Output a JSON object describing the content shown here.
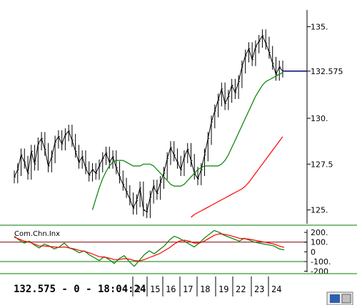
{
  "chart_data": [
    {
      "type": "candlestick",
      "title": "",
      "y_ticks": [
        "135.",
        "132.575",
        "130.",
        "127.5",
        "125."
      ],
      "y_tick_values": [
        135,
        132.575,
        130,
        127.5,
        125
      ],
      "ylim": [
        124.4,
        135.6
      ],
      "last_price_label": "132.575",
      "last_price": 132.575,
      "grid": false,
      "colors": {
        "price": "#000000",
        "ma_fast": "#008000",
        "ma_slow": "#ff0000",
        "last_price_line": "#000080",
        "axis": "#000000",
        "separator": "#008000"
      },
      "price_series": [
        126.8,
        127.2,
        128.0,
        127.6,
        127.0,
        128.2,
        127.5,
        128.6,
        128.9,
        128.3,
        127.4,
        127.9,
        128.7,
        129.0,
        128.6,
        129.1,
        129.3,
        128.8,
        128.2,
        127.6,
        127.9,
        127.3,
        126.9,
        127.2,
        127.0,
        127.4,
        127.8,
        128.1,
        127.6,
        127.9,
        127.3,
        126.8,
        126.4,
        126.0,
        125.6,
        125.1,
        125.5,
        126.2,
        125.0,
        124.9,
        125.7,
        126.3,
        125.9,
        126.5,
        127.0,
        127.8,
        128.4,
        128.0,
        127.6,
        127.2,
        127.9,
        128.3,
        127.7,
        127.0,
        126.7,
        127.2,
        128.0,
        128.9,
        129.8,
        130.4,
        131.0,
        131.6,
        130.8,
        131.2,
        131.8,
        131.4,
        132.0,
        132.8,
        133.4,
        133.8,
        133.2,
        133.9,
        134.2,
        134.5,
        134.1,
        133.6,
        133.0,
        132.4,
        132.8,
        132.575
      ],
      "ma_fast": [
        null,
        null,
        null,
        null,
        null,
        null,
        null,
        null,
        null,
        null,
        null,
        null,
        125.0,
        125.6,
        126.2,
        126.7,
        127.1,
        127.4,
        127.6,
        127.7,
        127.7,
        127.7,
        127.6,
        127.5,
        127.4,
        127.4,
        127.4,
        127.5,
        127.5,
        127.5,
        127.4,
        127.2,
        127.0,
        126.8,
        126.6,
        126.4,
        126.3,
        126.3,
        126.3,
        126.4,
        126.6,
        126.8,
        127.0,
        127.2,
        127.3,
        127.4,
        127.4,
        127.4,
        127.4,
        127.4,
        127.5,
        127.7,
        128.0,
        128.4,
        128.8,
        129.2,
        129.6,
        130.0,
        130.4,
        130.8,
        131.2,
        131.5,
        131.8,
        132.0,
        132.1,
        132.2,
        132.3,
        132.4,
        132.5
      ],
      "ma_slow": [
        null,
        null,
        null,
        null,
        null,
        null,
        null,
        null,
        null,
        null,
        null,
        null,
        null,
        null,
        null,
        null,
        null,
        null,
        null,
        null,
        null,
        null,
        null,
        null,
        null,
        null,
        null,
        null,
        null,
        null,
        null,
        null,
        null,
        null,
        124.6,
        124.75,
        124.85,
        124.95,
        125.05,
        125.15,
        125.25,
        125.35,
        125.45,
        125.55,
        125.65,
        125.75,
        125.85,
        125.95,
        126.05,
        126.15,
        126.3,
        126.5,
        126.75,
        127.0,
        127.25,
        127.5,
        127.75,
        128.0,
        128.25,
        128.5,
        128.75,
        129.0
      ]
    },
    {
      "type": "line",
      "title": "Com.Chn.Inx",
      "y_ticks": [
        "200.",
        "100.",
        "0",
        "-100.",
        "-200"
      ],
      "y_tick_values": [
        200,
        100,
        0,
        -100,
        -200
      ],
      "ylim": [
        -210,
        230
      ],
      "reference_lines": [
        100,
        -100
      ],
      "colors": {
        "cci": "#008000",
        "cci_signal": "#ff0000",
        "ref_upper": "#800000",
        "ref_lower": "#008000"
      },
      "cci": [
        160,
        120,
        90,
        110,
        70,
        40,
        80,
        60,
        30,
        50,
        90,
        40,
        20,
        -10,
        10,
        -30,
        -60,
        -90,
        -50,
        -80,
        -120,
        -70,
        -40,
        -100,
        -150,
        -90,
        -30,
        10,
        -20,
        20,
        60,
        120,
        160,
        140,
        110,
        80,
        50,
        90,
        140,
        180,
        220,
        200,
        170,
        150,
        130,
        110,
        140,
        120,
        100,
        90,
        80,
        70,
        60,
        30,
        20
      ],
      "cci_signal": [
        150,
        130,
        110,
        100,
        80,
        60,
        60,
        55,
        50,
        45,
        50,
        40,
        30,
        15,
        5,
        -10,
        -30,
        -50,
        -55,
        -65,
        -80,
        -80,
        -70,
        -75,
        -90,
        -95,
        -80,
        -60,
        -40,
        -20,
        10,
        40,
        80,
        110,
        120,
        110,
        90,
        90,
        110,
        140,
        170,
        185,
        180,
        170,
        155,
        140,
        135,
        130,
        120,
        110,
        100,
        90,
        80,
        60,
        45
      ]
    }
  ],
  "status_bar": {
    "readout": "132.575 - 0 - 18:04:24",
    "date_labels": [
      "2",
      "15",
      "16",
      "17",
      "18",
      "19",
      "22",
      "23",
      "24"
    ]
  }
}
